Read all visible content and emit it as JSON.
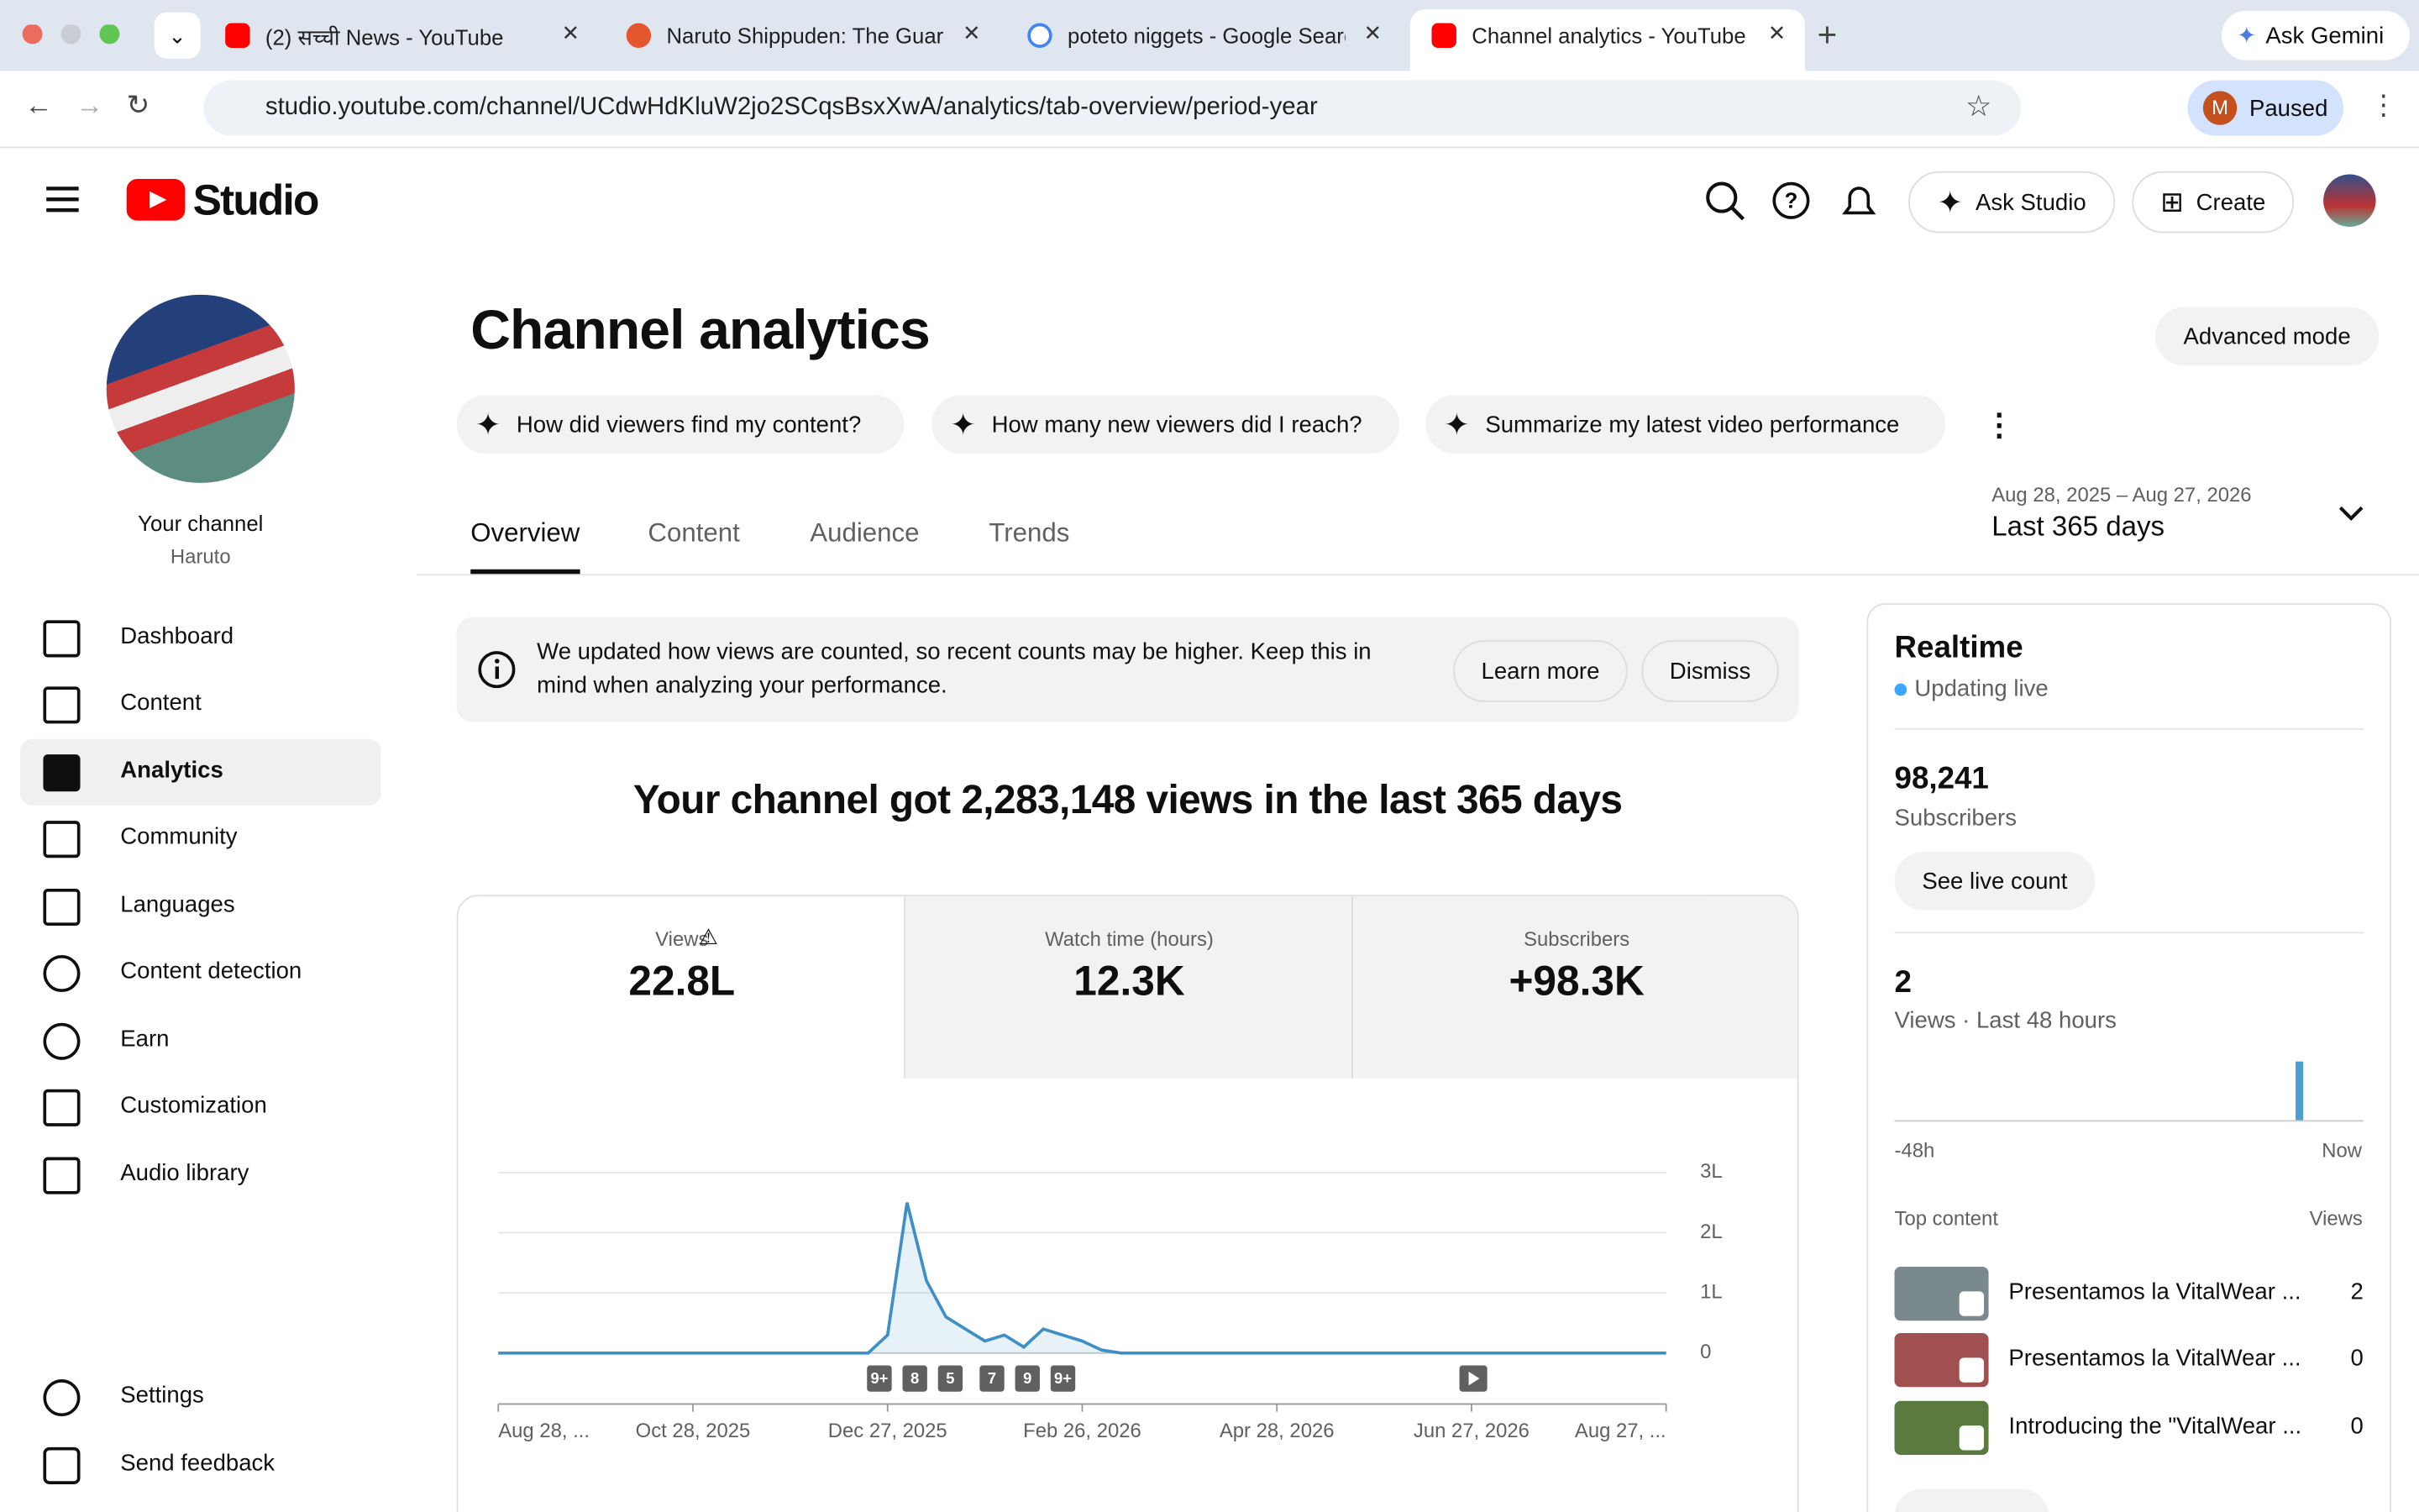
{
  "browser": {
    "tabs": [
      "(2) सच्ची News - YouTube",
      "Naruto Shippuden: The Guard",
      "poteto niggets - Google Searc",
      "Channel analytics - YouTube S"
    ],
    "ask_gemini": "Ask Gemini",
    "url": "studio.youtube.com/channel/UCdwHdKluW2jo2SCqsBsxXwA/analytics/tab-overview/period-year",
    "profile_initial": "M",
    "profile": "Paused"
  },
  "header": {
    "logo": "Studio",
    "ask_studio": "Ask Studio",
    "create": "Create"
  },
  "sidebar": {
    "channel_label": "Your channel",
    "channel_name": "Haruto",
    "nav": [
      "Dashboard",
      "Content",
      "Analytics",
      "Community",
      "Languages",
      "Content detection",
      "Earn",
      "Customization",
      "Audio library"
    ],
    "footer": [
      "Settings",
      "Send feedback"
    ]
  },
  "page": {
    "title": "Channel analytics",
    "advanced": "Advanced mode",
    "suggestions": [
      "How did viewers find my content?",
      "How many new viewers did I reach?",
      "Summarize my latest video performance"
    ],
    "tabs": [
      "Overview",
      "Content",
      "Audience",
      "Trends"
    ],
    "date_range": "Aug 28, 2025 – Aug 27, 2026",
    "period": "Last 365 days",
    "notice": "We updated how views are counted, so recent counts may be higher. Keep this in mind when analyzing your performance.",
    "learn_more": "Learn more",
    "dismiss": "Dismiss",
    "headline": "Your channel got 2,283,148 views in the last 365 days",
    "metrics": [
      {
        "label": "Views",
        "value": "22.8L"
      },
      {
        "label": "Watch time (hours)",
        "value": "12.3K"
      },
      {
        "label": "Subscribers",
        "value": "+98.3K"
      }
    ]
  },
  "chart": {
    "type": "line",
    "color": "#3d8fc6",
    "values": [
      0,
      0,
      0,
      0,
      0,
      0,
      0,
      0,
      0,
      0,
      0,
      0,
      0,
      0,
      0,
      0,
      0,
      0,
      0,
      0,
      0.3,
      2.5,
      1.2,
      0.6,
      0.4,
      0.2,
      0.3,
      0.1,
      0.4,
      0.3,
      0.2,
      0.05,
      0,
      0,
      0,
      0,
      0,
      0,
      0,
      0,
      0,
      0,
      0,
      0,
      0,
      0,
      0,
      0,
      0,
      0,
      0,
      0,
      0,
      0,
      0,
      0,
      0,
      0,
      0,
      0,
      0
    ],
    "xlim": [
      0,
      60
    ],
    "xticks": [
      {
        "value": 0,
        "label": "Aug 28, ..."
      },
      {
        "value": 10,
        "label": "Oct 28, 2025"
      },
      {
        "value": 20,
        "label": "Dec 27, 2025"
      },
      {
        "value": 30,
        "label": "Feb 26, 2026"
      },
      {
        "value": 40,
        "label": "Apr 28, 2026"
      },
      {
        "value": 50,
        "label": "Jun 27, 2026"
      },
      {
        "value": 60,
        "label": "Aug 27, ..."
      }
    ],
    "ylim": [
      0,
      3
    ],
    "yticks": [
      0,
      {
        "value": 1,
        "label": "1L"
      },
      {
        "value": 2,
        "label": "2L"
      },
      {
        "value": 3,
        "label": "3L"
      }
    ],
    "grid": true,
    "annotations": [
      "9+",
      "8",
      "5",
      "7",
      "9",
      "9+"
    ]
  },
  "realtime": {
    "title": "Realtime",
    "status": "Updating live",
    "subscribers": "98,241",
    "subscribers_label": "Subscribers",
    "see_live": "See live count",
    "views": 2,
    "views_label": "Views · Last 48 hours",
    "start": "-48h",
    "end": "Now",
    "top_content": "Top content",
    "views_header": "Views",
    "items": [
      {
        "title": "Presentamos la VitalWear ...",
        "views": 2
      },
      {
        "title": "Presentamos la VitalWear ...",
        "views": 0
      },
      {
        "title": "Introducing the \"VitalWear ...",
        "views": 0
      }
    ]
  }
}
